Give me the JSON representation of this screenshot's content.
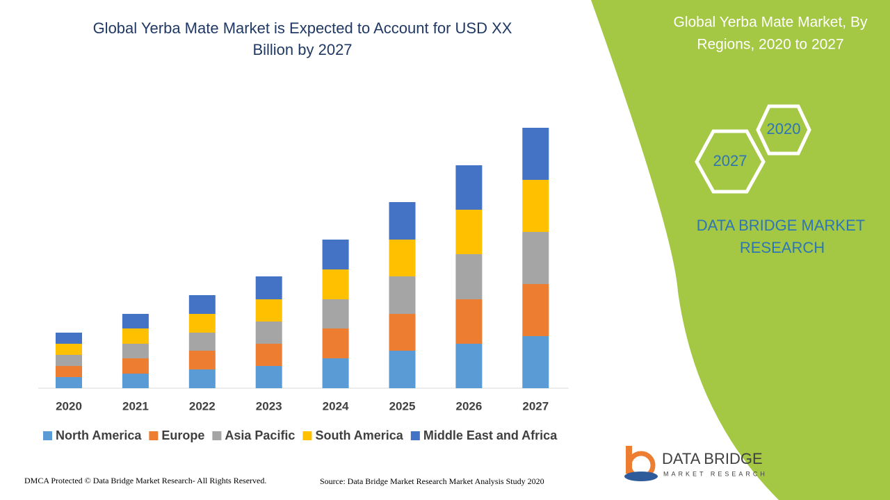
{
  "chart_data": {
    "type": "bar",
    "stacked": true,
    "title": [
      "Global Yerba Mate Market is Expected to Account for  USD XX",
      "Billion by 2027"
    ],
    "categories": [
      "2020",
      "2021",
      "2022",
      "2023",
      "2024",
      "2025",
      "2026",
      "2027"
    ],
    "series": [
      {
        "name": "North America",
        "color": "#5b9bd5",
        "values": [
          16,
          21,
          27,
          32,
          43,
          54,
          64,
          75
        ]
      },
      {
        "name": "Europe",
        "color": "#ed7d31",
        "values": [
          16,
          22,
          27,
          32,
          43,
          53,
          64,
          75
        ]
      },
      {
        "name": "Asia Pacific",
        "color": "#a5a5a5",
        "values": [
          16,
          21,
          26,
          32,
          42,
          54,
          65,
          75
        ]
      },
      {
        "name": "South America",
        "color": "#ffc000",
        "values": [
          16,
          22,
          27,
          32,
          43,
          53,
          64,
          75
        ]
      },
      {
        "name": "Middle East and Africa",
        "color": "#4472c4",
        "values": [
          16,
          21,
          27,
          33,
          43,
          54,
          64,
          75
        ]
      }
    ],
    "legend": "bottom"
  },
  "panel": {
    "title": [
      "Global Yerba Mate Market, By",
      "Regions, 2020 to 2027"
    ],
    "hex_start": "2020",
    "hex_end": "2027",
    "brand": [
      "DATA BRIDGE MARKET",
      "RESEARCH"
    ]
  },
  "logo": {
    "name": "DATA BRIDGE",
    "tagline": "MARKET RESEARCH"
  },
  "footer": {
    "left": "DMCA Protected © Data Bridge Market Research- All Rights Reserved.",
    "right": "Source: Data Bridge Market Research Market Analysis Study 2020"
  }
}
